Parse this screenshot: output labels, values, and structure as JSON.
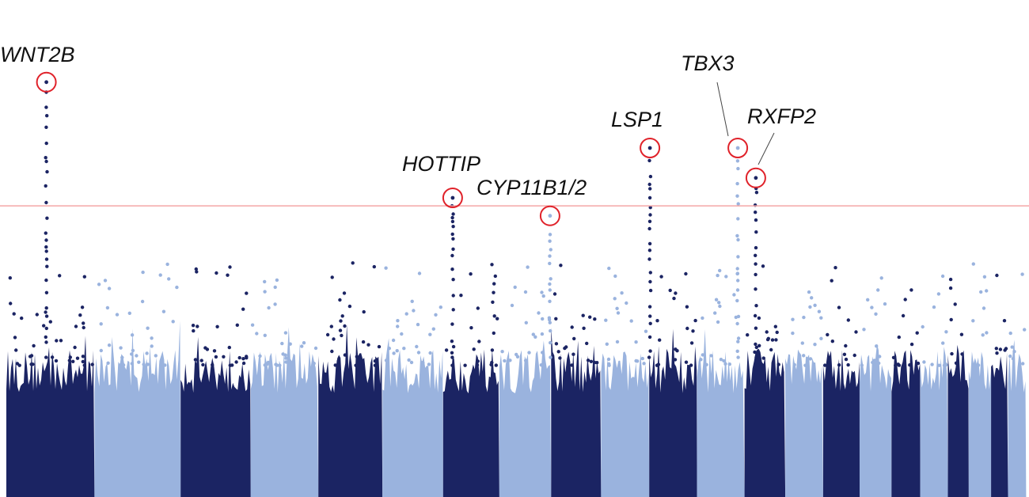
{
  "chart_data": {
    "type": "scatter",
    "subtype": "manhattan",
    "title": "",
    "xlabel": "",
    "ylabel": "",
    "ylim": [
      0,
      12.46
    ],
    "significance_threshold": 7.3,
    "colors": {
      "dark": "#1b2463",
      "light": "#9ab3de",
      "threshold": "#f4a6a6",
      "highlight": "#e0222a"
    },
    "chromosomes": [
      {
        "chr": "1",
        "length_mb": 249,
        "color": "dark"
      },
      {
        "chr": "2",
        "length_mb": 243,
        "color": "light"
      },
      {
        "chr": "3",
        "length_mb": 198,
        "color": "dark"
      },
      {
        "chr": "4",
        "length_mb": 191,
        "color": "light"
      },
      {
        "chr": "5",
        "length_mb": 181,
        "color": "dark"
      },
      {
        "chr": "6",
        "length_mb": 171,
        "color": "light"
      },
      {
        "chr": "7",
        "length_mb": 159,
        "color": "dark"
      },
      {
        "chr": "8",
        "length_mb": 146,
        "color": "light"
      },
      {
        "chr": "9",
        "length_mb": 141,
        "color": "dark"
      },
      {
        "chr": "10",
        "length_mb": 136,
        "color": "light"
      },
      {
        "chr": "11",
        "length_mb": 135,
        "color": "dark"
      },
      {
        "chr": "12",
        "length_mb": 134,
        "color": "light"
      },
      {
        "chr": "13",
        "length_mb": 115,
        "color": "dark"
      },
      {
        "chr": "14",
        "length_mb": 107,
        "color": "light"
      },
      {
        "chr": "15",
        "length_mb": 103,
        "color": "dark"
      },
      {
        "chr": "16",
        "length_mb": 90,
        "color": "light"
      },
      {
        "chr": "17",
        "length_mb": 81,
        "color": "dark"
      },
      {
        "chr": "18",
        "length_mb": 78,
        "color": "light"
      },
      {
        "chr": "19",
        "length_mb": 59,
        "color": "dark"
      },
      {
        "chr": "20",
        "length_mb": 63,
        "color": "light"
      },
      {
        "chr": "21",
        "length_mb": 48,
        "color": "dark"
      },
      {
        "chr": "22",
        "length_mb": 51,
        "color": "light"
      }
    ],
    "annotated_loci": [
      {
        "gene": "WNT2B",
        "chr": "1",
        "pos_mb": 113,
        "neg_log10_p": 10.4
      },
      {
        "gene": "HOTTIP",
        "chr": "7",
        "pos_mb": 27,
        "neg_log10_p": 7.5
      },
      {
        "gene": "CYP11B1/2",
        "chr": "8",
        "pos_mb": 143,
        "neg_log10_p": 7.05
      },
      {
        "gene": "LSP1",
        "chr": "11",
        "pos_mb": 2,
        "neg_log10_p": 8.75
      },
      {
        "gene": "TBX3",
        "chr": "12",
        "pos_mb": 115,
        "neg_log10_p": 8.75
      },
      {
        "gene": "RXFP2",
        "chr": "13",
        "pos_mb": 32,
        "neg_log10_p": 8.0
      }
    ]
  }
}
